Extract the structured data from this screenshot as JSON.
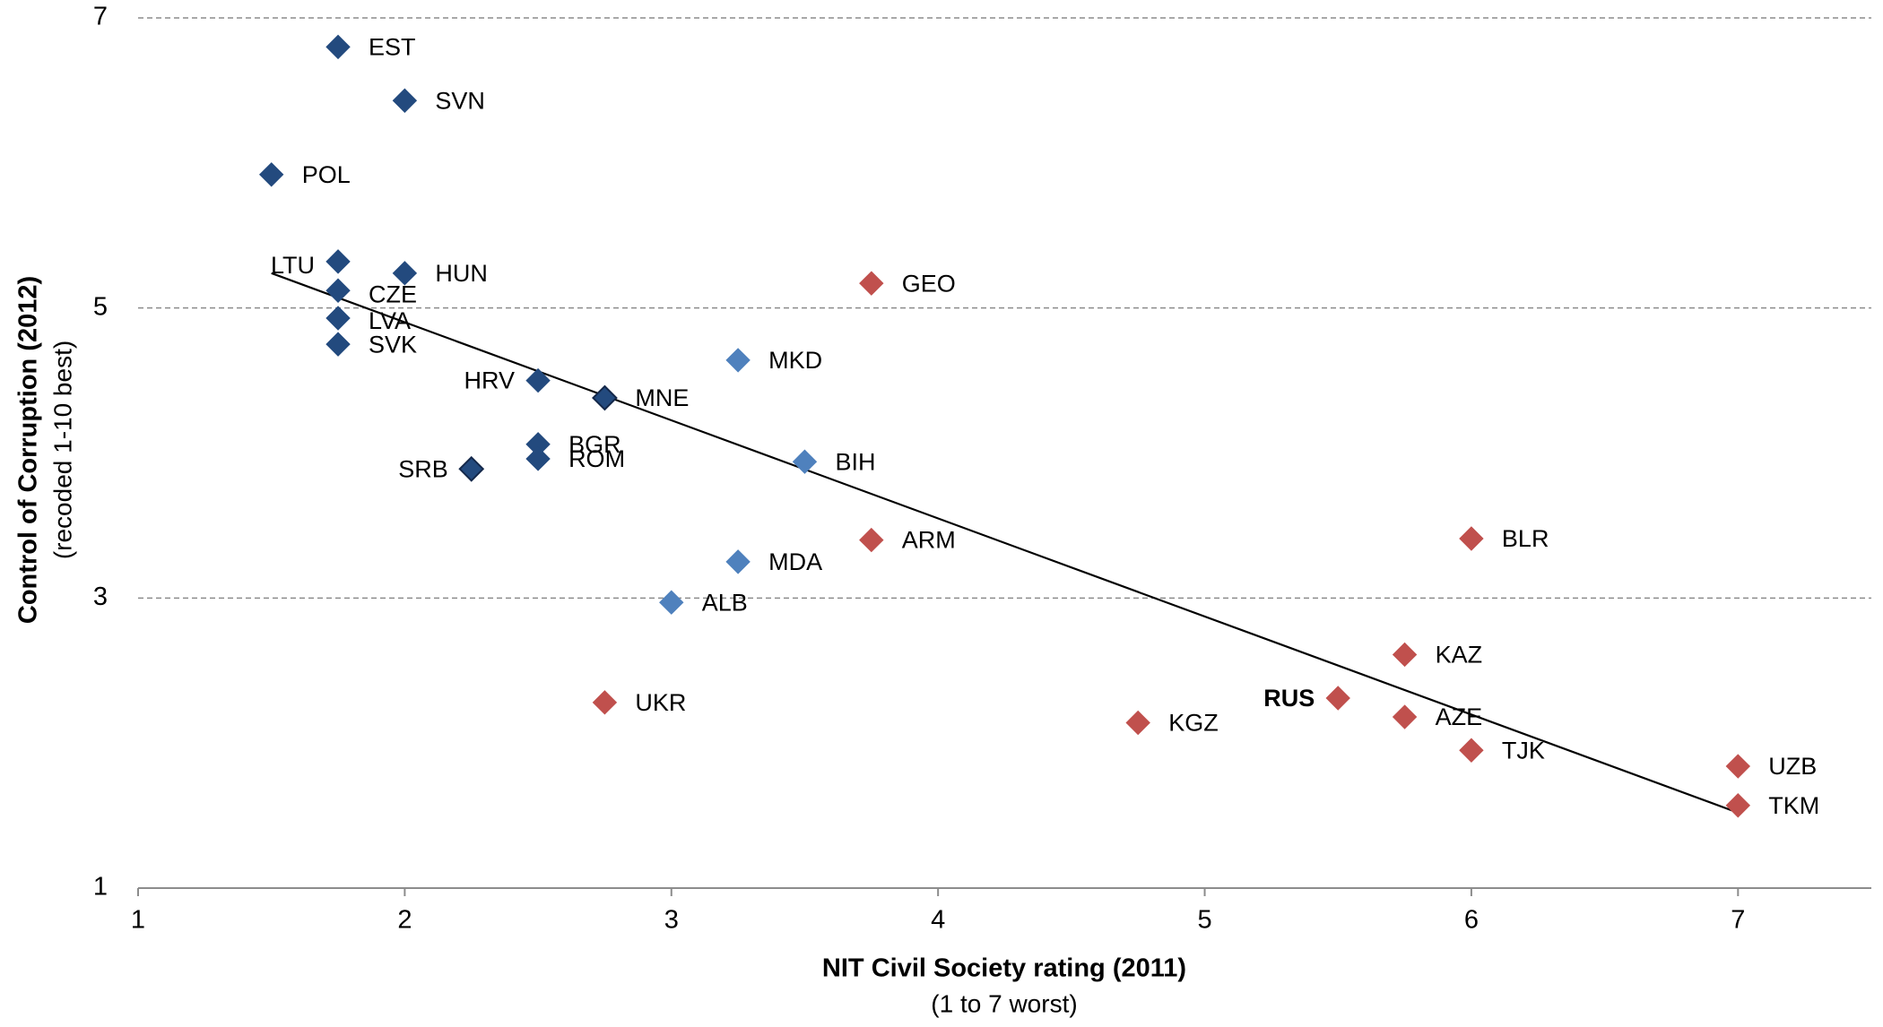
{
  "chart_data": {
    "type": "scatter",
    "x_label": "NIT Civil Society rating (2011)",
    "x_sublabel": "(1 to 7 worst)",
    "y_label": "Control of Corruption (2012)",
    "y_sublabel": "(recoded 1-10 best)",
    "xlim": [
      1,
      7.5
    ],
    "xticks": [
      1,
      2,
      3,
      4,
      5,
      6,
      7
    ],
    "ylim": [
      1,
      7
    ],
    "yticks": [
      1,
      3,
      5,
      7
    ],
    "grid": true,
    "series": [
      {
        "color": "#234a7e",
        "labels": [
          "EST",
          "SVN",
          "POL",
          "LTU",
          "HUN",
          "CZE",
          "LVA",
          "SVK",
          "HRV",
          "MNE",
          "BGR",
          "ROM",
          "SRB"
        ],
        "x": [
          1.75,
          2.0,
          1.5,
          1.75,
          2.0,
          1.75,
          1.75,
          1.75,
          2.5,
          2.75,
          2.5,
          2.5,
          2.25
        ],
        "values": [
          6.8,
          6.43,
          5.92,
          5.32,
          5.24,
          5.12,
          4.93,
          4.75,
          4.5,
          4.38,
          4.06,
          3.96,
          3.89
        ]
      },
      {
        "color": "#4f81bd",
        "labels": [
          "MKD",
          "BIH",
          "MDA",
          "ALB"
        ],
        "x": [
          3.25,
          3.5,
          3.25,
          3.0
        ],
        "values": [
          4.64,
          3.94,
          3.25,
          2.97
        ]
      },
      {
        "color": "#c0504d",
        "labels": [
          "GEO",
          "ARM",
          "UKR",
          "BLR",
          "KAZ",
          "RUS",
          "AZE",
          "KGZ",
          "TJK",
          "UZB",
          "TKM"
        ],
        "x": [
          3.75,
          3.75,
          2.75,
          6.0,
          5.75,
          5.5,
          5.75,
          4.75,
          6.0,
          7.0,
          7.0
        ],
        "values": [
          5.17,
          3.4,
          2.28,
          3.41,
          2.61,
          2.31,
          2.18,
          2.14,
          1.95,
          1.84,
          1.57
        ]
      }
    ],
    "trendline": {
      "color": "#000000",
      "x": [
        1.5,
        7
      ],
      "values": [
        5.24,
        1.52
      ]
    }
  }
}
